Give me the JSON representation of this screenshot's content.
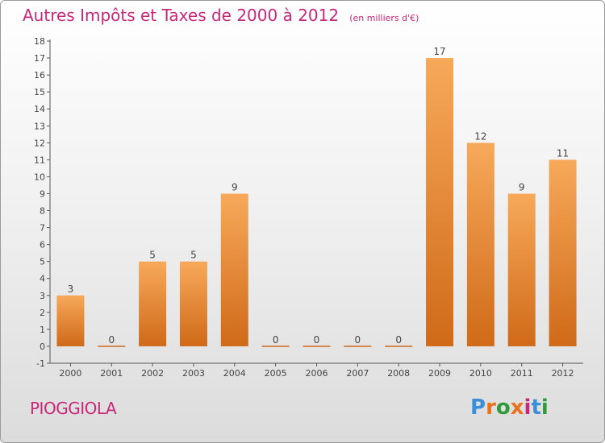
{
  "header": {
    "title": "Autres Impôts et Taxes de 2000 à 2012",
    "subtitle": "(en milliers d'€)"
  },
  "footer": {
    "place": "PIOGGIOLA",
    "logo_text": "Proxiti"
  },
  "colors": {
    "accent": "#c8287a",
    "bar_top": "#f7a95a",
    "bar_bottom": "#cf6a18",
    "logo": [
      "#3a8fd8",
      "#e8731c",
      "#2f9a3c",
      "#e8731c",
      "#c8287a",
      "#3a8fd8",
      "#2f9a3c"
    ]
  },
  "chart_data": {
    "type": "bar",
    "title": "Autres Impôts et Taxes de 2000 à 2012",
    "subtitle": "(en milliers d'€)",
    "categories": [
      "2000",
      "2001",
      "2002",
      "2003",
      "2004",
      "2005",
      "2006",
      "2007",
      "2008",
      "2009",
      "2010",
      "2011",
      "2012"
    ],
    "values": [
      3,
      0,
      5,
      5,
      9,
      0,
      0,
      0,
      0,
      17,
      12,
      9,
      11
    ],
    "ylim": [
      -1,
      18
    ],
    "yticks": [
      -1,
      0,
      1,
      2,
      3,
      4,
      5,
      6,
      7,
      8,
      9,
      10,
      11,
      12,
      13,
      14,
      15,
      16,
      17,
      18
    ],
    "grid": false,
    "xlabel": "",
    "ylabel": ""
  }
}
